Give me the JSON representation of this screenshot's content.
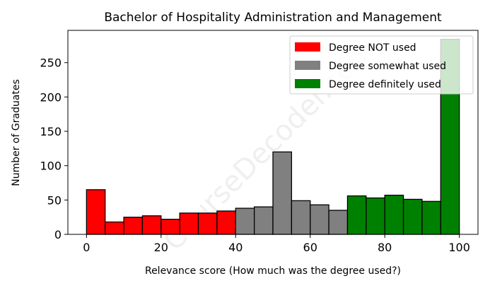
{
  "chart_data": {
    "type": "bar",
    "title": "Bachelor of Hospitality Administration and Management",
    "xlabel": "Relevance score (How much was the degree used?)",
    "ylabel": "Number of Graduates",
    "xlim": [
      -5,
      105
    ],
    "ylim": [
      0,
      297
    ],
    "xticks": [
      0,
      20,
      40,
      60,
      80,
      100
    ],
    "yticks": [
      0,
      50,
      100,
      150,
      200,
      250
    ],
    "grid": false,
    "legend_position": "top-right",
    "bin_width": 5,
    "bins": [
      {
        "start": 0,
        "value": 65,
        "series": 0
      },
      {
        "start": 5,
        "value": 18,
        "series": 0
      },
      {
        "start": 10,
        "value": 25,
        "series": 0
      },
      {
        "start": 15,
        "value": 27,
        "series": 0
      },
      {
        "start": 20,
        "value": 22,
        "series": 0
      },
      {
        "start": 25,
        "value": 31,
        "series": 0
      },
      {
        "start": 30,
        "value": 31,
        "series": 0
      },
      {
        "start": 35,
        "value": 34,
        "series": 0
      },
      {
        "start": 40,
        "value": 38,
        "series": 1
      },
      {
        "start": 45,
        "value": 40,
        "series": 1
      },
      {
        "start": 50,
        "value": 120,
        "series": 1
      },
      {
        "start": 55,
        "value": 49,
        "series": 1
      },
      {
        "start": 60,
        "value": 43,
        "series": 1
      },
      {
        "start": 65,
        "value": 35,
        "series": 1
      },
      {
        "start": 70,
        "value": 56,
        "series": 2
      },
      {
        "start": 75,
        "value": 53,
        "series": 2
      },
      {
        "start": 80,
        "value": 57,
        "series": 2
      },
      {
        "start": 85,
        "value": 51,
        "series": 2
      },
      {
        "start": 90,
        "value": 48,
        "series": 2
      },
      {
        "start": 95,
        "value": 284,
        "series": 2
      }
    ],
    "series": [
      {
        "name": "Degree NOT used",
        "color": "#ff0000"
      },
      {
        "name": "Degree somewhat used",
        "color": "#808080"
      },
      {
        "name": "Degree definitely used",
        "color": "#008000"
      }
    ]
  },
  "watermark": "CourseDecoder.com"
}
